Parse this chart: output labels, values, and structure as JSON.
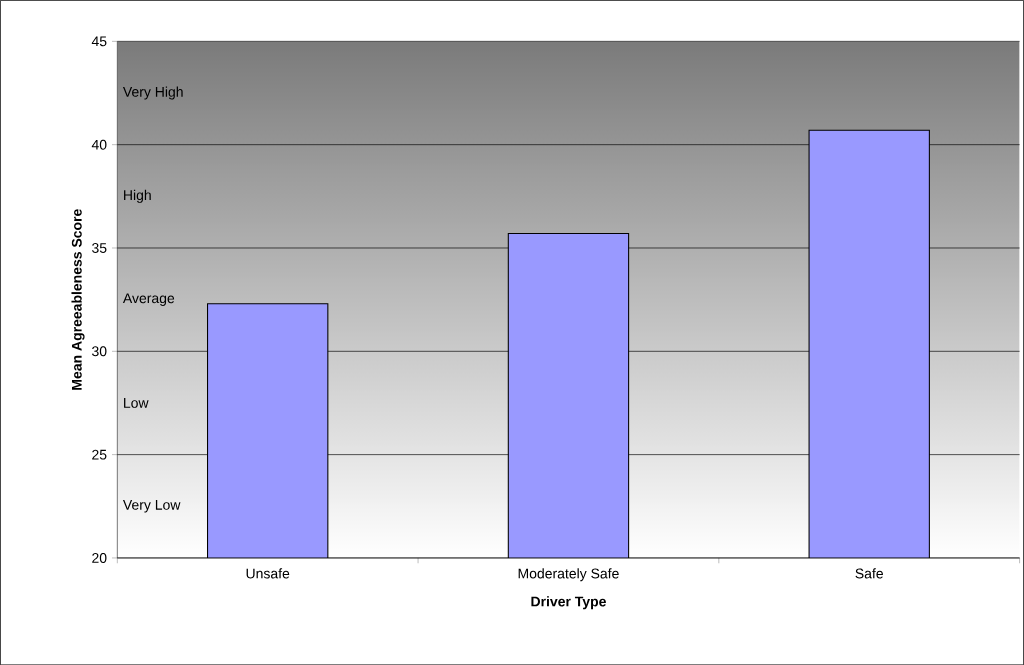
{
  "chart_data": {
    "type": "bar",
    "xlabel": "Driver Type",
    "ylabel": "Mean Agreeableness Score",
    "categories": [
      "Unsafe",
      "Moderately Safe",
      "Safe"
    ],
    "values": [
      32.3,
      35.7,
      40.7
    ],
    "color": "#9999ff",
    "ylim": [
      20,
      45
    ],
    "yticks": [
      20,
      25,
      30,
      35,
      40,
      45
    ],
    "grid": "y",
    "annotations": [
      "Very High",
      "High",
      "Average",
      "Low",
      "Very Low"
    ]
  }
}
